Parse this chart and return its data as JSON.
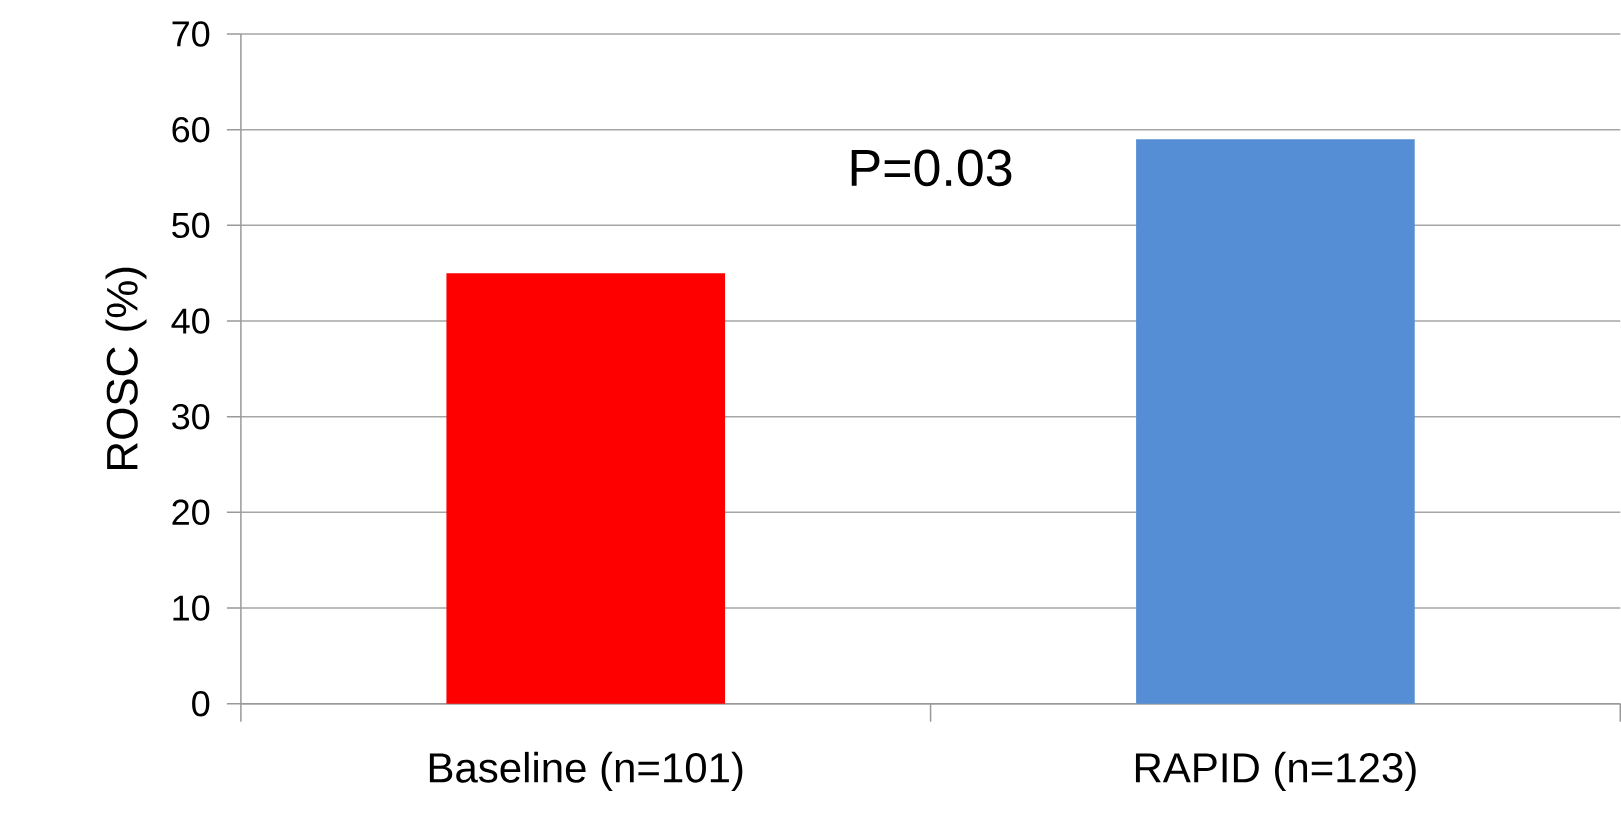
{
  "chart_data": {
    "type": "bar",
    "ylabel": "ROSC (%)",
    "categories": [
      "Baseline (n=101)",
      "RAPID (n=123)"
    ],
    "values": [
      45,
      59
    ],
    "colors": [
      "#ff0000",
      "#558ed5"
    ],
    "ylim": [
      0,
      70
    ],
    "yticks": [
      0,
      10,
      20,
      30,
      40,
      50,
      60,
      70
    ],
    "grid": "y",
    "annotations": [
      "P=0.03"
    ]
  }
}
